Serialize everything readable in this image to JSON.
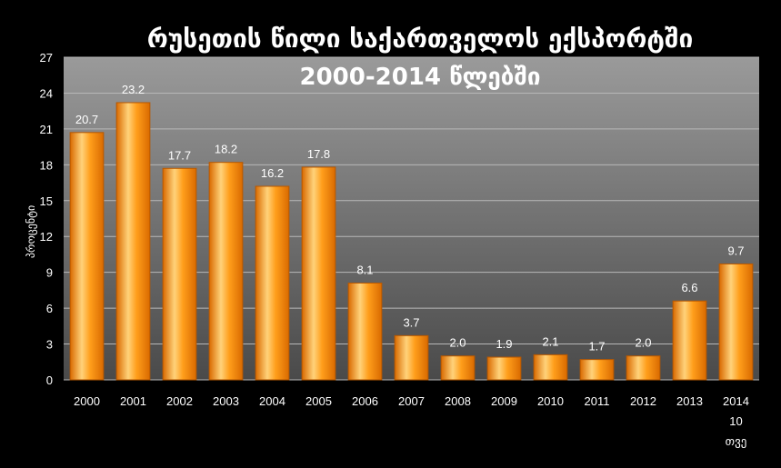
{
  "chart_data": {
    "type": "bar",
    "title_line1": "რუსეთის წილი საქართველოს ექსპორტში",
    "title_line2": "2000-2014 წლებში",
    "ylabel": "პროცენტი",
    "categories": [
      "2000",
      "2001",
      "2002",
      "2003",
      "2004",
      "2005",
      "2006",
      "2007",
      "2008",
      "2009",
      "2010",
      "2011",
      "2012",
      "2013",
      "2014"
    ],
    "last_category_extra_lines": [
      "10",
      "თვე"
    ],
    "values": [
      20.7,
      23.2,
      17.7,
      18.2,
      16.2,
      17.8,
      8.1,
      3.7,
      2.0,
      1.9,
      2.1,
      1.7,
      2.0,
      6.6,
      9.7
    ],
    "value_labels": [
      "20.7",
      "23.2",
      "17.7",
      "18.2",
      "16.2",
      "17.8",
      "8.1",
      "3.7",
      "2.0",
      "1.9",
      "2.1",
      "1.7",
      "2.0",
      "6.6",
      "9.7"
    ],
    "ylim": [
      0,
      27
    ],
    "yticks": [
      "0",
      "3",
      "6",
      "9",
      "12",
      "15",
      "18",
      "21",
      "24",
      "27"
    ],
    "grid": true,
    "legend": "none",
    "colors": {
      "background": "#000000",
      "plot_top": "#9a9a9a",
      "plot_bottom": "#4a4a4a",
      "bar_light": "#ffd27a",
      "bar_mid": "#ff9e1b",
      "bar_dark": "#d96a00",
      "grid": "#b8b8b8"
    }
  }
}
